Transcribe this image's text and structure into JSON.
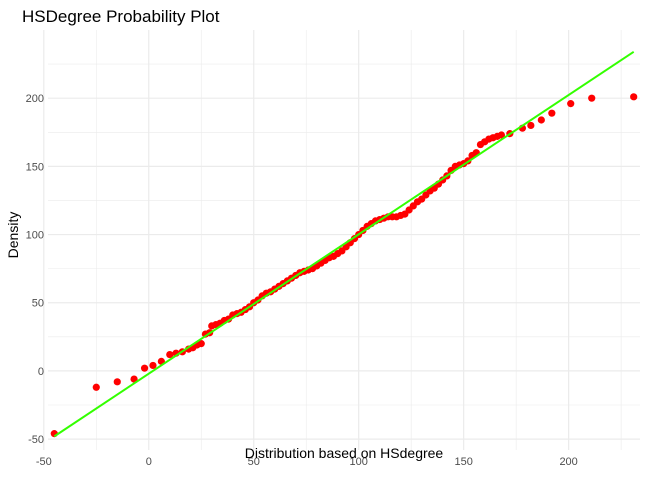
{
  "chart_data": {
    "type": "scatter",
    "title": "HSDegree Probability Plot",
    "xlabel": "Distribution based on HSdegree",
    "ylabel": "Density",
    "xlim": [
      -48,
      234
    ],
    "ylim": [
      -58,
      250
    ],
    "x_ticks": [
      -50,
      0,
      50,
      100,
      150,
      200
    ],
    "y_ticks": [
      -50,
      0,
      50,
      100,
      150,
      200
    ],
    "grid": true,
    "legend": "none",
    "colors": {
      "points": "#ff0000",
      "line": "#33ff00",
      "grid": "#ebebeb"
    },
    "reference_line": {
      "x": [
        -45,
        231
      ],
      "y": [
        -48,
        234
      ]
    },
    "points": [
      [
        -45,
        -46
      ],
      [
        -25,
        -12
      ],
      [
        -15,
        -8
      ],
      [
        -7,
        -6
      ],
      [
        -2,
        2
      ],
      [
        2,
        4
      ],
      [
        6,
        7
      ],
      [
        10,
        12
      ],
      [
        13,
        13
      ],
      [
        16,
        14
      ],
      [
        19,
        16
      ],
      [
        21,
        17
      ],
      [
        23,
        19
      ],
      [
        25,
        20
      ],
      [
        27,
        27
      ],
      [
        29,
        28
      ],
      [
        30,
        33
      ],
      [
        32,
        34
      ],
      [
        34,
        35
      ],
      [
        36,
        37
      ],
      [
        38,
        38
      ],
      [
        40,
        41
      ],
      [
        42,
        42
      ],
      [
        44,
        43
      ],
      [
        46,
        45
      ],
      [
        48,
        47
      ],
      [
        50,
        50
      ],
      [
        52,
        52
      ],
      [
        54,
        55
      ],
      [
        56,
        57
      ],
      [
        58,
        58
      ],
      [
        60,
        60
      ],
      [
        62,
        62
      ],
      [
        64,
        64
      ],
      [
        66,
        66
      ],
      [
        68,
        68
      ],
      [
        70,
        70
      ],
      [
        72,
        72
      ],
      [
        74,
        73
      ],
      [
        76,
        74
      ],
      [
        78,
        75
      ],
      [
        80,
        77
      ],
      [
        82,
        79
      ],
      [
        84,
        81
      ],
      [
        86,
        83
      ],
      [
        88,
        84
      ],
      [
        90,
        86
      ],
      [
        92,
        88
      ],
      [
        94,
        91
      ],
      [
        96,
        94
      ],
      [
        98,
        97
      ],
      [
        100,
        100
      ],
      [
        102,
        103
      ],
      [
        104,
        106
      ],
      [
        106,
        108
      ],
      [
        108,
        110
      ],
      [
        110,
        111
      ],
      [
        112,
        112
      ],
      [
        114,
        113
      ],
      [
        116,
        113
      ],
      [
        118,
        113
      ],
      [
        120,
        114
      ],
      [
        122,
        115
      ],
      [
        124,
        118
      ],
      [
        126,
        121
      ],
      [
        128,
        124
      ],
      [
        130,
        126
      ],
      [
        132,
        129
      ],
      [
        134,
        132
      ],
      [
        136,
        134
      ],
      [
        138,
        137
      ],
      [
        140,
        140
      ],
      [
        142,
        143
      ],
      [
        144,
        147
      ],
      [
        146,
        150
      ],
      [
        148,
        151
      ],
      [
        150,
        152
      ],
      [
        152,
        154
      ],
      [
        154,
        158
      ],
      [
        156,
        160
      ],
      [
        158,
        166
      ],
      [
        160,
        168
      ],
      [
        162,
        170
      ],
      [
        164,
        171
      ],
      [
        166,
        172
      ],
      [
        168,
        173
      ],
      [
        172,
        174
      ],
      [
        178,
        178
      ],
      [
        182,
        180
      ],
      [
        187,
        184
      ],
      [
        192,
        189
      ],
      [
        201,
        196
      ],
      [
        211,
        200
      ],
      [
        231,
        201
      ]
    ]
  }
}
